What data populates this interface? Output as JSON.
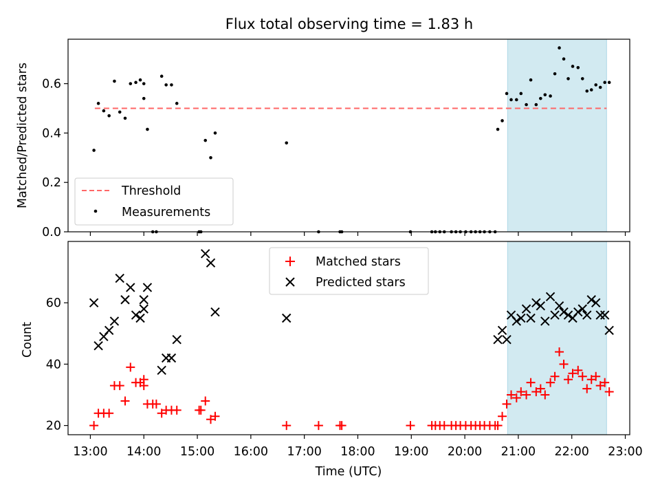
{
  "chart_data": [
    {
      "type": "scatter",
      "title": "Flux total observing time = 1.83 h",
      "xlabel": "",
      "ylabel": "Matched/Predicted stars",
      "xlim": [
        "12:35",
        "23:05"
      ],
      "ylim": [
        0,
        0.78
      ],
      "yticks": [
        0.0,
        0.2,
        0.4,
        0.6
      ],
      "ytick_labels": [
        "0.0",
        "0.2",
        "0.4",
        "0.6"
      ],
      "shaded_interval": [
        "20:48",
        "22:39"
      ],
      "shade_color": "#add8e6",
      "legend": {
        "position": "lower-left",
        "entries": [
          {
            "label": "Threshold",
            "color": "#ff6666",
            "style": "dashed-line"
          },
          {
            "label": "Measurements",
            "color": "#000000",
            "style": "dot"
          }
        ]
      },
      "threshold": {
        "name": "Threshold",
        "value": 0.5,
        "x_range": [
          "13:05",
          "22:39"
        ],
        "color": "#ff6666"
      },
      "series": [
        {
          "name": "Measurements",
          "color": "#000000",
          "points": [
            [
              "13:04",
              0.33
            ],
            [
              "13:09",
              0.52
            ],
            [
              "13:15",
              0.49
            ],
            [
              "13:21",
              0.47
            ],
            [
              "13:27",
              0.61
            ],
            [
              "13:33",
              0.485
            ],
            [
              "13:39",
              0.46
            ],
            [
              "13:45",
              0.6
            ],
            [
              "13:51",
              0.605
            ],
            [
              "13:56",
              0.615
            ],
            [
              "14:00",
              0.54
            ],
            [
              "14:00",
              0.6
            ],
            [
              "14:04",
              0.415
            ],
            [
              "14:10",
              0.0
            ],
            [
              "14:14",
              0.0
            ],
            [
              "14:20",
              0.63
            ],
            [
              "14:25",
              0.595
            ],
            [
              "14:31",
              0.595
            ],
            [
              "14:37",
              0.52
            ],
            [
              "15:02",
              0.0
            ],
            [
              "15:04",
              0.0
            ],
            [
              "15:09",
              0.37
            ],
            [
              "15:15",
              0.3
            ],
            [
              "15:20",
              0.4
            ],
            [
              "16:40",
              0.36
            ],
            [
              "17:16",
              0.0
            ],
            [
              "17:40",
              0.0
            ],
            [
              "17:42",
              0.0
            ],
            [
              "18:59",
              0.0
            ],
            [
              "19:23",
              0.0
            ],
            [
              "19:27",
              0.0
            ],
            [
              "19:32",
              0.0
            ],
            [
              "19:37",
              0.0
            ],
            [
              "19:45",
              0.0
            ],
            [
              "19:50",
              0.0
            ],
            [
              "19:55",
              0.0
            ],
            [
              "20:01",
              0.0
            ],
            [
              "20:07",
              0.0
            ],
            [
              "20:12",
              0.0
            ],
            [
              "20:17",
              0.0
            ],
            [
              "20:22",
              0.0
            ],
            [
              "20:28",
              0.0
            ],
            [
              "20:34",
              0.0
            ],
            [
              "20:37",
              0.415
            ],
            [
              "20:42",
              0.45
            ],
            [
              "20:47",
              0.56
            ],
            [
              "20:52",
              0.535
            ],
            [
              "20:58",
              0.535
            ],
            [
              "21:03",
              0.56
            ],
            [
              "21:09",
              0.515
            ],
            [
              "21:14",
              0.615
            ],
            [
              "21:20",
              0.515
            ],
            [
              "21:25",
              0.54
            ],
            [
              "21:30",
              0.555
            ],
            [
              "21:36",
              0.55
            ],
            [
              "21:41",
              0.64
            ],
            [
              "21:46",
              0.745
            ],
            [
              "21:51",
              0.7
            ],
            [
              "21:56",
              0.62
            ],
            [
              "22:01",
              0.67
            ],
            [
              "22:07",
              0.665
            ],
            [
              "22:12",
              0.62
            ],
            [
              "22:17",
              0.57
            ],
            [
              "22:22",
              0.575
            ],
            [
              "22:27",
              0.595
            ],
            [
              "22:32",
              0.585
            ],
            [
              "22:37",
              0.605
            ],
            [
              "22:42",
              0.605
            ]
          ]
        }
      ]
    },
    {
      "type": "scatter",
      "title": "",
      "xlabel": "Time (UTC)",
      "ylabel": "Count",
      "xlim": [
        "12:35",
        "23:05"
      ],
      "ylim": [
        17,
        80
      ],
      "xticks": [
        "13:00",
        "14:00",
        "15:00",
        "16:00",
        "17:00",
        "18:00",
        "19:00",
        "20:00",
        "21:00",
        "22:00",
        "23:00"
      ],
      "yticks": [
        20,
        40,
        60
      ],
      "ytick_labels": [
        "20",
        "40",
        "60"
      ],
      "shaded_interval": [
        "20:48",
        "22:39"
      ],
      "shade_color": "#add8e6",
      "legend": {
        "position": "top-center",
        "entries": [
          {
            "label": "Matched stars",
            "color": "#ff0000",
            "style": "plus"
          },
          {
            "label": "Predicted stars",
            "color": "#000000",
            "style": "x"
          }
        ]
      },
      "series": [
        {
          "name": "Matched stars",
          "color": "#ff0000",
          "points": [
            [
              "13:04",
              20
            ],
            [
              "13:09",
              24
            ],
            [
              "13:15",
              24
            ],
            [
              "13:21",
              24
            ],
            [
              "13:27",
              33
            ],
            [
              "13:33",
              33
            ],
            [
              "13:39",
              28
            ],
            [
              "13:45",
              39
            ],
            [
              "13:51",
              34
            ],
            [
              "13:56",
              34
            ],
            [
              "14:00",
              33
            ],
            [
              "14:00",
              35
            ],
            [
              "14:04",
              27
            ],
            [
              "14:10",
              27
            ],
            [
              "14:14",
              27
            ],
            [
              "14:20",
              24
            ],
            [
              "14:25",
              25
            ],
            [
              "14:31",
              25
            ],
            [
              "14:37",
              25
            ],
            [
              "15:02",
              25
            ],
            [
              "15:04",
              25
            ],
            [
              "15:09",
              28
            ],
            [
              "15:15",
              22
            ],
            [
              "15:20",
              23
            ],
            [
              "16:40",
              20
            ],
            [
              "17:16",
              20
            ],
            [
              "17:40",
              20
            ],
            [
              "17:42",
              20
            ],
            [
              "18:59",
              20
            ],
            [
              "19:23",
              20
            ],
            [
              "19:27",
              20
            ],
            [
              "19:32",
              20
            ],
            [
              "19:37",
              20
            ],
            [
              "19:45",
              20
            ],
            [
              "19:50",
              20
            ],
            [
              "19:55",
              20
            ],
            [
              "20:01",
              20
            ],
            [
              "20:07",
              20
            ],
            [
              "20:12",
              20
            ],
            [
              "20:17",
              20
            ],
            [
              "20:22",
              20
            ],
            [
              "20:28",
              20
            ],
            [
              "20:34",
              20
            ],
            [
              "20:37",
              20
            ],
            [
              "20:42",
              23
            ],
            [
              "20:47",
              27
            ],
            [
              "20:52",
              30
            ],
            [
              "20:58",
              29
            ],
            [
              "21:03",
              31
            ],
            [
              "21:09",
              30
            ],
            [
              "21:14",
              34
            ],
            [
              "21:20",
              31
            ],
            [
              "21:25",
              32
            ],
            [
              "21:30",
              30
            ],
            [
              "21:36",
              34
            ],
            [
              "21:41",
              36
            ],
            [
              "21:46",
              44
            ],
            [
              "21:51",
              40
            ],
            [
              "21:56",
              35
            ],
            [
              "22:01",
              37
            ],
            [
              "22:07",
              38
            ],
            [
              "22:12",
              36
            ],
            [
              "22:17",
              32
            ],
            [
              "22:22",
              35
            ],
            [
              "22:27",
              36
            ],
            [
              "22:32",
              33
            ],
            [
              "22:37",
              34
            ],
            [
              "22:42",
              31
            ]
          ]
        },
        {
          "name": "Predicted stars",
          "color": "#000000",
          "points": [
            [
              "13:04",
              60
            ],
            [
              "13:09",
              46
            ],
            [
              "13:15",
              49
            ],
            [
              "13:21",
              51
            ],
            [
              "13:27",
              54
            ],
            [
              "13:33",
              68
            ],
            [
              "13:39",
              61
            ],
            [
              "13:45",
              65
            ],
            [
              "13:51",
              56
            ],
            [
              "13:56",
              55
            ],
            [
              "14:00",
              61
            ],
            [
              "14:00",
              58
            ],
            [
              "14:04",
              65
            ],
            [
              "14:20",
              38
            ],
            [
              "14:25",
              42
            ],
            [
              "14:31",
              42
            ],
            [
              "14:37",
              48
            ],
            [
              "15:09",
              76
            ],
            [
              "15:15",
              73
            ],
            [
              "15:20",
              57
            ],
            [
              "16:40",
              55
            ],
            [
              "20:37",
              48
            ],
            [
              "20:42",
              51
            ],
            [
              "20:47",
              48
            ],
            [
              "20:52",
              56
            ],
            [
              "20:58",
              54
            ],
            [
              "21:03",
              55
            ],
            [
              "21:09",
              58
            ],
            [
              "21:14",
              55
            ],
            [
              "21:20",
              60
            ],
            [
              "21:25",
              59
            ],
            [
              "21:30",
              54
            ],
            [
              "21:36",
              62
            ],
            [
              "21:41",
              56
            ],
            [
              "21:46",
              59
            ],
            [
              "21:51",
              57
            ],
            [
              "21:56",
              56
            ],
            [
              "22:01",
              55
            ],
            [
              "22:07",
              57
            ],
            [
              "22:12",
              58
            ],
            [
              "22:17",
              56
            ],
            [
              "22:22",
              61
            ],
            [
              "22:27",
              60
            ],
            [
              "22:32",
              56
            ],
            [
              "22:37",
              56
            ],
            [
              "22:42",
              51
            ]
          ]
        }
      ]
    }
  ]
}
